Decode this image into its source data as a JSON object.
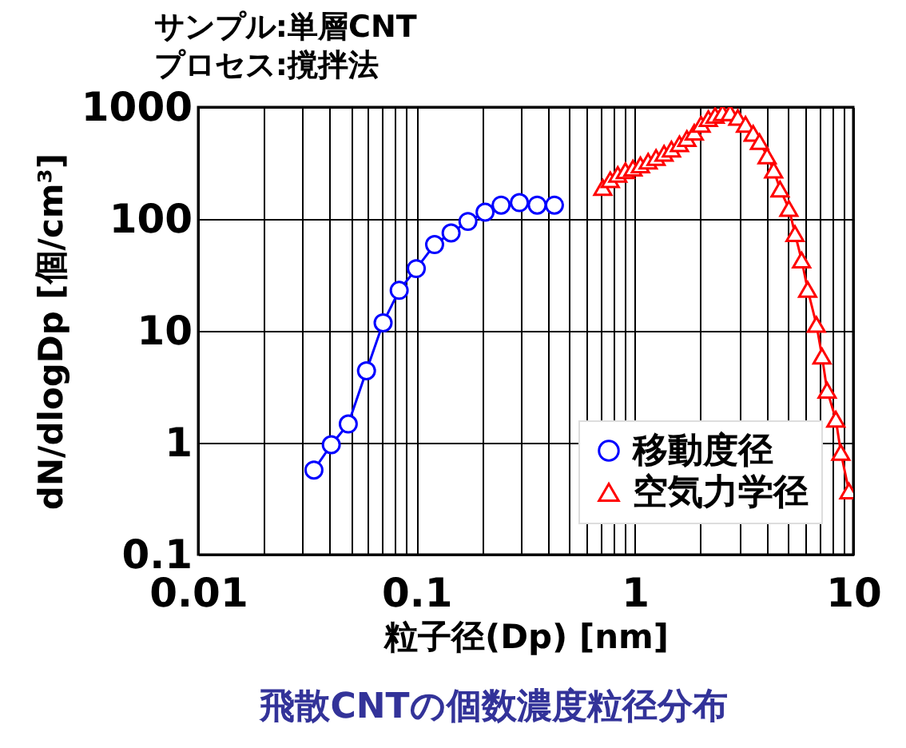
{
  "chart_data": {
    "type": "line",
    "title": [
      "サンプル:単層CNT",
      "プロセス:撹拌法"
    ],
    "xlabel": "粒子径(Dp) [nm]",
    "ylabel": "dN/dlogDp [個/cm³]",
    "annotations": [
      "飛散CNTの個数濃度粒径分布"
    ],
    "log": "xy",
    "grid": true,
    "legend": "bottom right",
    "xlim": [
      0.01,
      10
    ],
    "ylim": [
      0.1,
      1000
    ],
    "xticks": [
      0.01,
      {
        "value": 0.02,
        "label": null
      },
      {
        "value": 0.03,
        "label": null
      },
      {
        "value": 0.04,
        "label": null
      },
      {
        "value": 0.05,
        "label": null
      },
      {
        "value": 0.06,
        "label": null
      },
      {
        "value": 0.07,
        "label": null
      },
      {
        "value": 0.08,
        "label": null
      },
      {
        "value": 0.09,
        "label": null
      },
      0.1,
      {
        "value": 0.2,
        "label": null
      },
      {
        "value": 0.3,
        "label": null
      },
      {
        "value": 0.4,
        "label": null
      },
      {
        "value": 0.5,
        "label": null
      },
      {
        "value": 0.6,
        "label": null
      },
      {
        "value": 0.7,
        "label": null
      },
      {
        "value": 0.8,
        "label": null
      },
      {
        "value": 0.9,
        "label": null
      },
      1,
      {
        "value": 2,
        "label": null
      },
      {
        "value": 3,
        "label": null
      },
      {
        "value": 4,
        "label": null
      },
      {
        "value": 5,
        "label": null
      },
      {
        "value": 6,
        "label": null
      },
      {
        "value": 7,
        "label": null
      },
      {
        "value": 8,
        "label": null
      },
      {
        "value": 9,
        "label": null
      },
      10
    ],
    "yticks": [
      0.1,
      1,
      10,
      100,
      1000
    ],
    "series": [
      {
        "name": "移動度径",
        "color": "#0000ff",
        "marker": "circle",
        "x": [
          0.0339,
          0.0407,
          0.0487,
          0.059,
          0.0703,
          0.0833,
          0.0998,
          0.121,
          0.144,
          0.172,
          0.206,
          0.244,
          0.296,
          0.357,
          0.428
        ],
        "values": [
          0.57,
          0.96,
          1.47,
          4.4,
          11.8,
          23,
          36,
          59,
          75,
          95,
          115,
          133,
          140,
          133,
          133
        ]
      },
      {
        "name": "空気力学径",
        "color": "#ff0000",
        "marker": "triangle",
        "x": [
          0.713,
          0.771,
          0.835,
          0.905,
          0.98,
          1.06,
          1.15,
          1.25,
          1.36,
          1.47,
          1.6,
          1.73,
          1.87,
          2.01,
          2.17,
          2.33,
          2.52,
          2.73,
          2.96,
          3.21,
          3.48,
          3.72,
          4.03,
          4.32,
          4.62,
          5.07,
          5.41,
          5.8,
          6.18,
          6.78,
          7.19,
          7.59,
          8.32,
          8.77,
          9.55
        ],
        "values": [
          191,
          224,
          250,
          270,
          285,
          304,
          328,
          354,
          386,
          421,
          469,
          524,
          596,
          701,
          789,
          841,
          889,
          889,
          807,
          701,
          583,
          491,
          366,
          273,
          185,
          124,
          74,
          43,
          23.5,
          11.4,
          5.94,
          2.94,
          1.62,
          0.82,
          0.37
        ]
      }
    ]
  }
}
